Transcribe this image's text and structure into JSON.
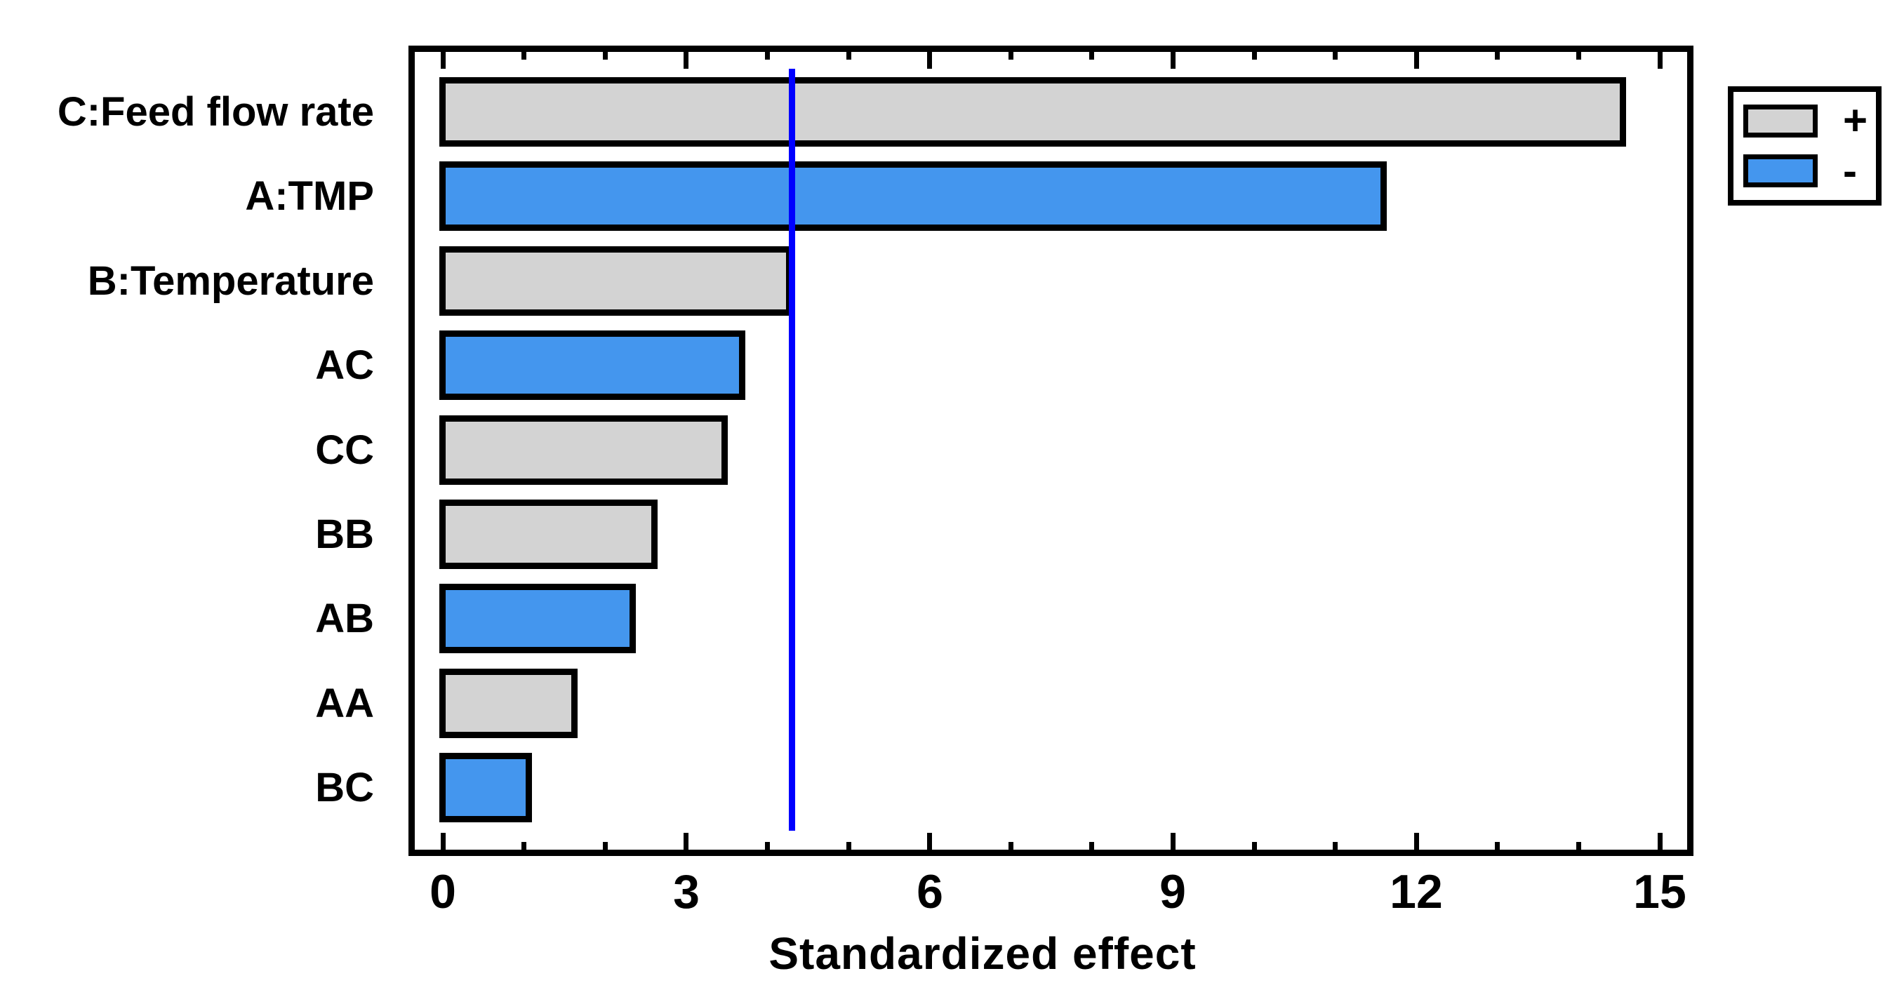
{
  "chart_data": {
    "type": "bar",
    "orientation": "horizontal",
    "title": "",
    "xlabel": "Standardized effect",
    "ylabel": "",
    "categories": [
      "C:Feed flow rate",
      "A:TMP",
      "B:Temperature",
      "AC",
      "CC",
      "BB",
      "AB",
      "AA",
      "BC"
    ],
    "values": [
      14.55,
      11.6,
      4.27,
      3.69,
      3.47,
      2.61,
      2.34,
      1.62,
      1.06
    ],
    "signs": [
      "+",
      "-",
      "+",
      "-",
      "+",
      "+",
      "-",
      "+",
      "-"
    ],
    "reference_line_value": 4.3,
    "xlim": [
      0,
      15.3
    ],
    "x_major_ticks": [
      0,
      3,
      6,
      9,
      12,
      15
    ],
    "x_minor_tick_step": 1,
    "grid": "off",
    "legend_position": "outside-top-right",
    "legend": [
      {
        "label": "+",
        "color": "#D3D3D3"
      },
      {
        "label": "-",
        "color": "#4496EE"
      }
    ],
    "colors": {
      "positive_fill": "#D3D3D3",
      "negative_fill": "#4496EE",
      "bar_border": "#000000",
      "reference_line": "#0000FF",
      "background": "#FFFFFF"
    }
  }
}
